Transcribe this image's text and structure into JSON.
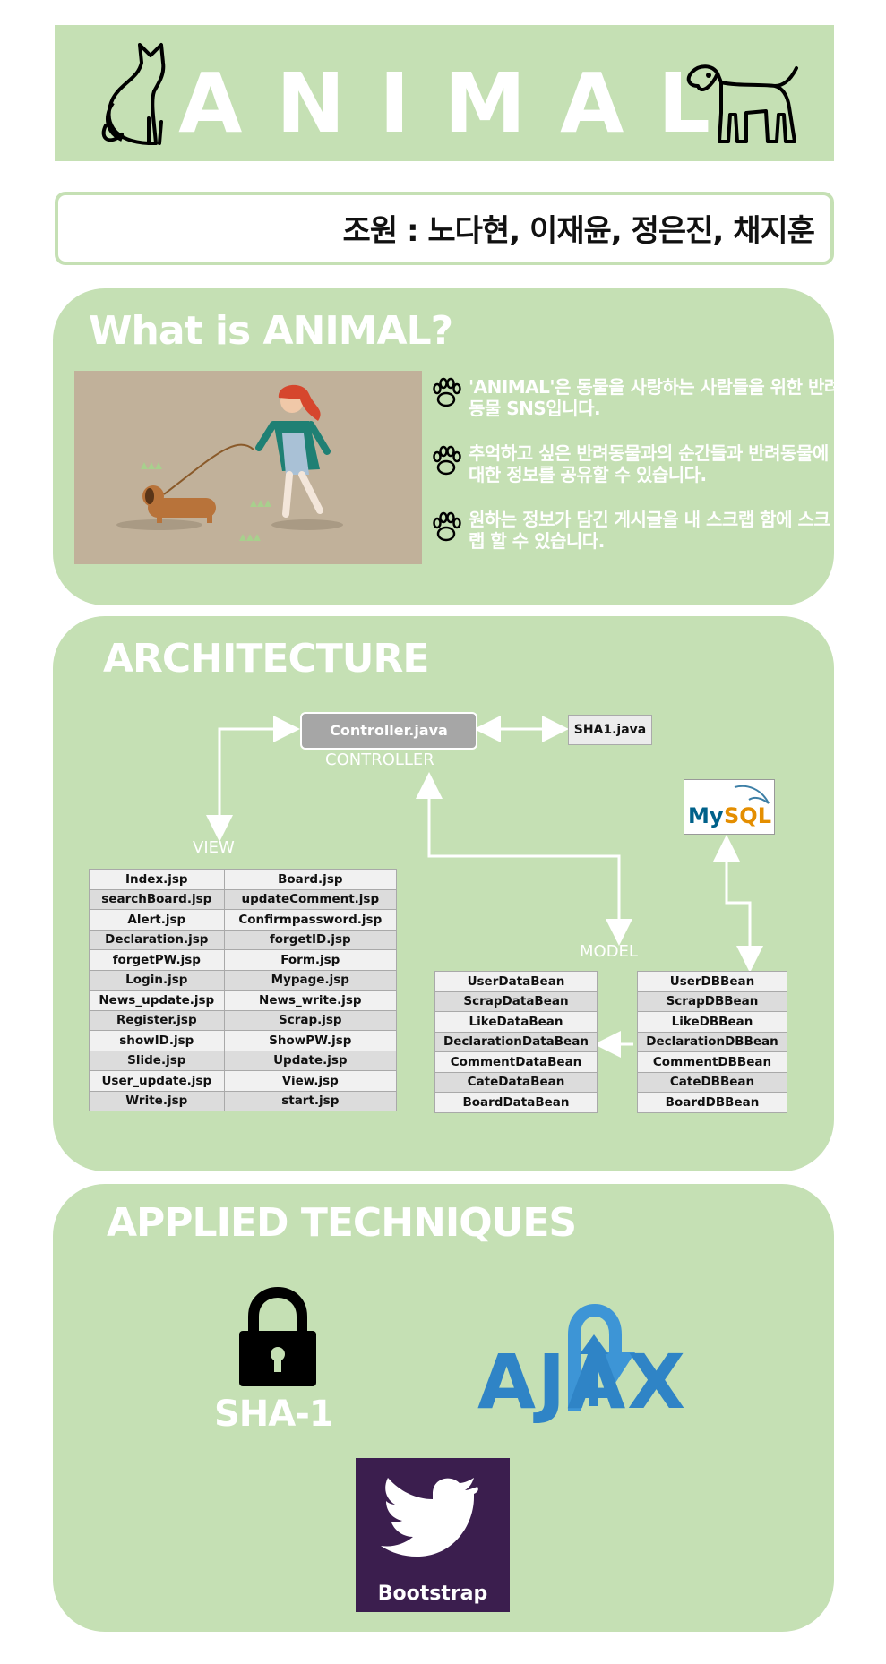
{
  "header": {
    "title": "ANIMAL"
  },
  "team": {
    "text": "조원 : 노다현, 이재윤, 정은진, 채지훈"
  },
  "about": {
    "title": "What is ANIMAL?",
    "items": [
      "'ANIMAL'은 동물을 사랑하는 사람들을 위한 반려동물 SNS입니다.",
      "추억하고 싶은 반려동물과의 순간들과 반려동물에 대한 정보를 공유할 수 있습니다.",
      "원하는 정보가 담긴 게시글을 내 스크랩 함에 스크랩 할 수 있습니다."
    ]
  },
  "architecture": {
    "title": "ARCHITECTURE",
    "controller_box": "Controller.java",
    "controller_label": "CONTROLLER",
    "sha_box": "SHA1.java",
    "view_label": "VIEW",
    "model_label": "MODEL",
    "mysql_label": "MySQL",
    "view_files": [
      [
        "Index.jsp",
        "Board.jsp"
      ],
      [
        "searchBoard.jsp",
        "updateComment.jsp"
      ],
      [
        "Alert.jsp",
        "Confirmpassword.jsp"
      ],
      [
        "Declaration.jsp",
        "forgetID.jsp"
      ],
      [
        "forgetPW.jsp",
        "Form.jsp"
      ],
      [
        "Login.jsp",
        "Mypage.jsp"
      ],
      [
        "News_update.jsp",
        "News_write.jsp"
      ],
      [
        "Register.jsp",
        "Scrap.jsp"
      ],
      [
        "showID.jsp",
        "ShowPW.jsp"
      ],
      [
        "Slide.jsp",
        "Update.jsp"
      ],
      [
        "User_update.jsp",
        "View.jsp"
      ],
      [
        "Write.jsp",
        "start.jsp"
      ]
    ],
    "data_beans": [
      "UserDataBean",
      "ScrapDataBean",
      "LikeDataBean",
      "DeclarationDataBean",
      "CommentDataBean",
      "CateDataBean",
      "BoardDataBean"
    ],
    "db_beans": [
      "UserDBBean",
      "ScrapDBBean",
      "LikeDBBean",
      "DeclarationDBBean",
      "CommentDBBean",
      "CateDBBean",
      "BoardDBBean"
    ]
  },
  "techniques": {
    "title": "APPLIED TECHNIQUES",
    "sha_label": "SHA-1",
    "ajax_label": "AJAX",
    "bootstrap_label": "Bootstrap"
  }
}
